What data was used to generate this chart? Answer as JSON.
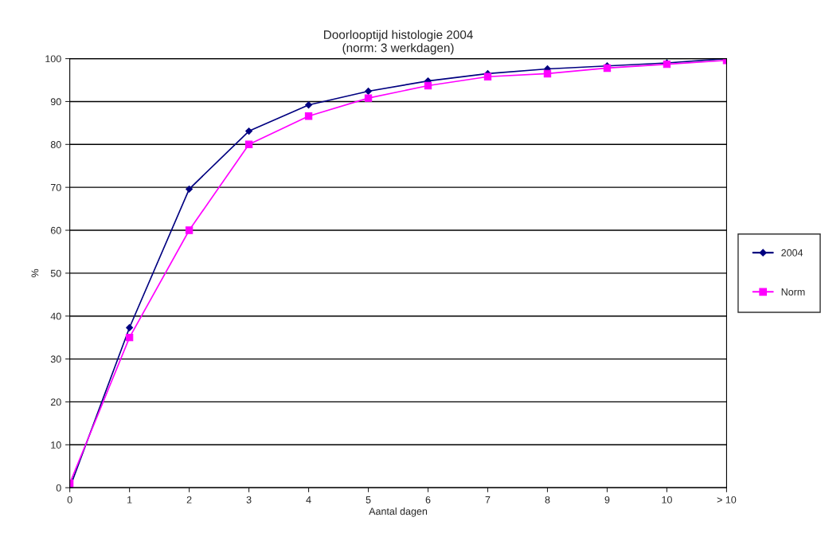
{
  "chart_data": {
    "type": "line",
    "title": "Doorlooptijd histologie 2004\n(norm: 3 werkdagen)",
    "xlabel": "Aantal dagen",
    "ylabel": "%",
    "categories": [
      "0",
      "1",
      "2",
      "3",
      "4",
      "5",
      "6",
      "7",
      "8",
      "9",
      "10",
      "> 10"
    ],
    "series": [
      {
        "name": "2004",
        "color": "#000080",
        "marker": "diamond",
        "values": [
          0,
          37.3,
          69.6,
          83.1,
          89.2,
          92.4,
          94.8,
          96.5,
          97.6,
          98.3,
          99,
          100
        ]
      },
      {
        "name": "Norm",
        "color": "#ff00ff",
        "marker": "square",
        "values": [
          1,
          35,
          60,
          80,
          86.6,
          90.8,
          93.7,
          95.8,
          96.5,
          97.8,
          98.7,
          99.6
        ]
      }
    ],
    "ylim": [
      0,
      100
    ],
    "yticks": [
      0,
      10,
      20,
      30,
      40,
      50,
      60,
      70,
      80,
      90,
      100
    ],
    "grid": "y",
    "legend": "right"
  }
}
